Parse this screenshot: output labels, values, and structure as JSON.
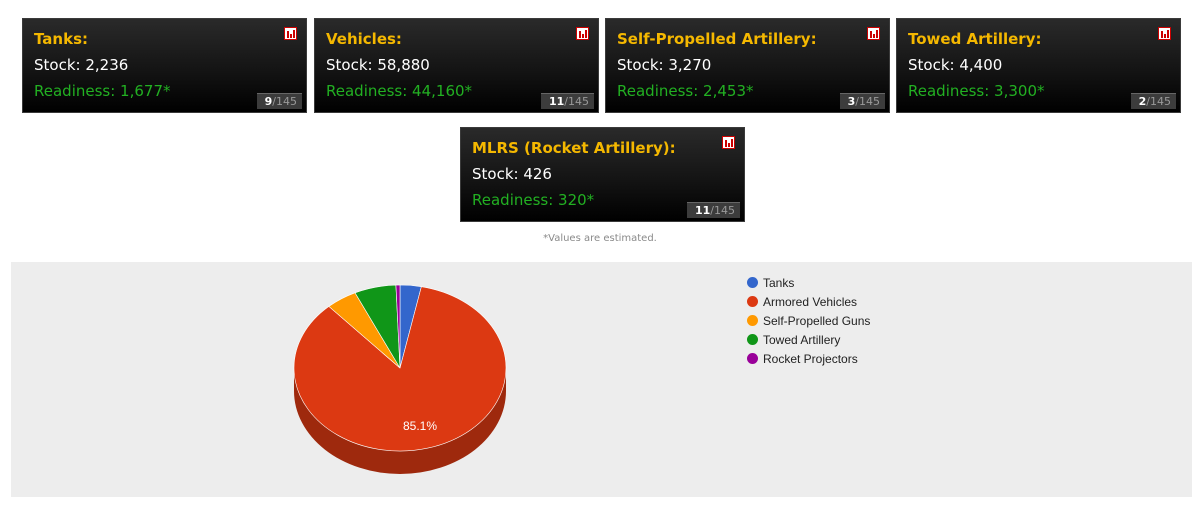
{
  "cards": [
    {
      "title": "Tanks:",
      "stock": "Stock: 2,236",
      "readiness": "Readiness: 1,677*",
      "rank": "9",
      "rank_total": "/145"
    },
    {
      "title": "Vehicles:",
      "stock": "Stock: 58,880",
      "readiness": "Readiness: 44,160*",
      "rank": "11",
      "rank_total": "/145"
    },
    {
      "title": "Self-Propelled Artillery:",
      "stock": "Stock: 3,270",
      "readiness": "Readiness: 2,453*",
      "rank": "3",
      "rank_total": "/145"
    },
    {
      "title": "Towed Artillery:",
      "stock": "Stock: 4,400",
      "readiness": "Readiness: 3,300*",
      "rank": "2",
      "rank_total": "/145"
    },
    {
      "title": "MLRS (Rocket Artillery):",
      "stock": "Stock: 426",
      "readiness": "Readiness: 320*",
      "rank": "11",
      "rank_total": "/145"
    }
  ],
  "note": "*Values are estimated.",
  "chart_data": {
    "type": "pie",
    "style": "3d",
    "legend_position": "right",
    "categories": [
      "Tanks",
      "Armored Vehicles",
      "Self-Propelled Guns",
      "Towed Artillery",
      "Rocket Projectors"
    ],
    "values": [
      2236,
      58880,
      3270,
      4400,
      426
    ],
    "colors": [
      "#3366cc",
      "#dc3912",
      "#ff9900",
      "#109618",
      "#990099"
    ],
    "slice_labels": [
      "",
      "85.1%",
      "",
      "",
      ""
    ]
  }
}
